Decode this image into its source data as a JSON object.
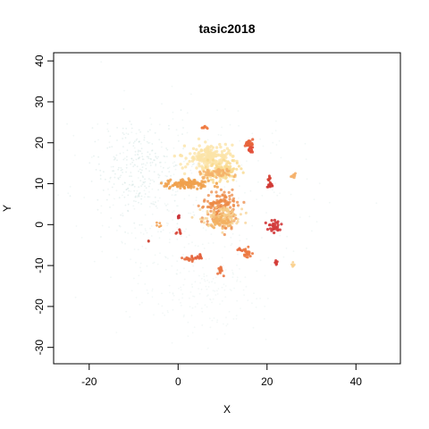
{
  "chart_data": {
    "type": "scatter",
    "title": "tasic2018",
    "xlabel": "X",
    "ylabel": "Y",
    "xlim": [
      -28,
      50
    ],
    "ylim": [
      -34,
      42
    ],
    "xticks": [
      -20,
      0,
      20,
      40
    ],
    "yticks": [
      -30,
      -20,
      -10,
      0,
      10,
      20,
      30,
      40
    ],
    "grid": false,
    "legend": "none",
    "background_color": "#cfe3e0",
    "clusters": [
      {
        "name": "pale-cloud-left",
        "cx": -9,
        "cy": 14,
        "sx": 5,
        "sy": 6,
        "n": 260,
        "color": "#cfe3e0",
        "opacity": 0.45,
        "size": 0.9
      },
      {
        "name": "pale-cloud-center",
        "cx": 2,
        "cy": 6,
        "sx": 13,
        "sy": 11,
        "n": 340,
        "color": "#d6e8e4",
        "opacity": 0.35,
        "size": 0.9
      },
      {
        "name": "pale-cloud-lower",
        "cx": 6,
        "cy": -16,
        "sx": 7,
        "sy": 5,
        "n": 160,
        "color": "#d8e8e6",
        "opacity": 0.3,
        "size": 0.9
      },
      {
        "name": "cream-upper",
        "cx": 7,
        "cy": 16,
        "sx": 2.4,
        "sy": 1.6,
        "n": 230,
        "color": "#fbe3a8",
        "opacity": 0.8,
        "size": 1.7
      },
      {
        "name": "cream-upper-right",
        "cx": 10,
        "cy": 13,
        "sx": 1.8,
        "sy": 1.3,
        "n": 110,
        "color": "#f9d98f",
        "opacity": 0.8,
        "size": 1.6
      },
      {
        "name": "orange-band",
        "cx": 2,
        "cy": 10,
        "sx": 2.6,
        "sy": 0.5,
        "n": 120,
        "color": "#f0a14e",
        "opacity": 0.85,
        "size": 1.6
      },
      {
        "name": "band-right",
        "cx": 9,
        "cy": 12.5,
        "sx": 2.2,
        "sy": 0.6,
        "n": 60,
        "color": "#f4b26a",
        "opacity": 0.85,
        "size": 1.5
      },
      {
        "name": "center-cluster",
        "cx": 9.5,
        "cy": 4,
        "sx": 1.7,
        "sy": 2.1,
        "n": 170,
        "color": "#ec8a45",
        "opacity": 0.75,
        "size": 1.6
      },
      {
        "name": "center-pale",
        "cx": 10,
        "cy": 2,
        "sx": 2.2,
        "sy": 1.5,
        "n": 120,
        "color": "#f7cf8a",
        "opacity": 0.7,
        "size": 1.5
      },
      {
        "name": "center-lower",
        "cx": 9.5,
        "cy": 0.5,
        "sx": 1.2,
        "sy": 0.7,
        "n": 50,
        "color": "#f2b062",
        "opacity": 0.8,
        "size": 1.5
      },
      {
        "name": "red-cluster-1",
        "cx": 16,
        "cy": 19.8,
        "sx": 0.5,
        "sy": 0.5,
        "n": 25,
        "color": "#e8643c",
        "opacity": 0.9,
        "size": 1.6
      },
      {
        "name": "red-cluster-2",
        "cx": 16.3,
        "cy": 18,
        "sx": 0.3,
        "sy": 0.4,
        "n": 14,
        "color": "#e2503a",
        "opacity": 0.9,
        "size": 1.5
      },
      {
        "name": "red-cluster-3",
        "cx": 20.5,
        "cy": 11,
        "sx": 0.3,
        "sy": 0.5,
        "n": 12,
        "color": "#d64235",
        "opacity": 0.9,
        "size": 1.5
      },
      {
        "name": "red-cluster-4",
        "cx": 21,
        "cy": 9.5,
        "sx": 0.4,
        "sy": 0.3,
        "n": 12,
        "color": "#d03a36",
        "opacity": 0.9,
        "size": 1.5
      },
      {
        "name": "orange-small-1",
        "cx": 6,
        "cy": 23.5,
        "sx": 0.3,
        "sy": 0.2,
        "n": 8,
        "color": "#ef7a40",
        "opacity": 0.9,
        "size": 1.5
      },
      {
        "name": "right-orange",
        "cx": 26,
        "cy": 12,
        "sx": 0.3,
        "sy": 0.3,
        "n": 8,
        "color": "#f5b06a",
        "opacity": 0.9,
        "size": 1.5
      },
      {
        "name": "red-right-mid",
        "cx": 21.5,
        "cy": -0.5,
        "sx": 0.7,
        "sy": 0.8,
        "n": 28,
        "color": "#d2393a",
        "opacity": 0.9,
        "size": 1.6
      },
      {
        "name": "red-left-1",
        "cx": 0.2,
        "cy": 2,
        "sx": 0.2,
        "sy": 0.3,
        "n": 6,
        "color": "#c93337",
        "opacity": 0.9,
        "size": 1.5
      },
      {
        "name": "red-left-2",
        "cx": 0,
        "cy": -1.8,
        "sx": 0.3,
        "sy": 0.3,
        "n": 7,
        "color": "#d8473a",
        "opacity": 0.9,
        "size": 1.5
      },
      {
        "name": "orange-left",
        "cx": -4.5,
        "cy": 0,
        "sx": 0.3,
        "sy": 0.3,
        "n": 5,
        "color": "#f3a45a",
        "opacity": 0.9,
        "size": 1.4
      },
      {
        "name": "red-far-left",
        "cx": -6.5,
        "cy": -4,
        "sx": 0.2,
        "sy": 0.2,
        "n": 3,
        "color": "#d04a3a",
        "opacity": 0.9,
        "size": 1.4
      },
      {
        "name": "orange-lower-left",
        "cx": 2.5,
        "cy": -8.5,
        "sx": 0.6,
        "sy": 0.3,
        "n": 18,
        "color": "#e87042",
        "opacity": 0.9,
        "size": 1.5
      },
      {
        "name": "orange-lower-left-2",
        "cx": 4.5,
        "cy": -7.8,
        "sx": 0.5,
        "sy": 0.3,
        "n": 12,
        "color": "#e3603c",
        "opacity": 0.9,
        "size": 1.5
      },
      {
        "name": "orange-lower-mid",
        "cx": 9.5,
        "cy": -11,
        "sx": 0.3,
        "sy": 0.6,
        "n": 12,
        "color": "#ea7442",
        "opacity": 0.9,
        "size": 1.5
      },
      {
        "name": "orange-lower-right-1",
        "cx": 15.5,
        "cy": -7,
        "sx": 0.5,
        "sy": 0.7,
        "n": 22,
        "color": "#ec7a43",
        "opacity": 0.9,
        "size": 1.5
      },
      {
        "name": "orange-lower-right-2",
        "cx": 14,
        "cy": -6,
        "sx": 0.3,
        "sy": 0.3,
        "n": 6,
        "color": "#e86a3d",
        "opacity": 0.9,
        "size": 1.5
      },
      {
        "name": "red-lower-right",
        "cx": 22,
        "cy": -9.3,
        "sx": 0.4,
        "sy": 0.2,
        "n": 8,
        "color": "#d43c37",
        "opacity": 0.9,
        "size": 1.5
      },
      {
        "name": "cream-lower-right",
        "cx": 26,
        "cy": -9.8,
        "sx": 0.3,
        "sy": 0.3,
        "n": 6,
        "color": "#f9d08e",
        "opacity": 0.9,
        "size": 1.4
      }
    ]
  }
}
